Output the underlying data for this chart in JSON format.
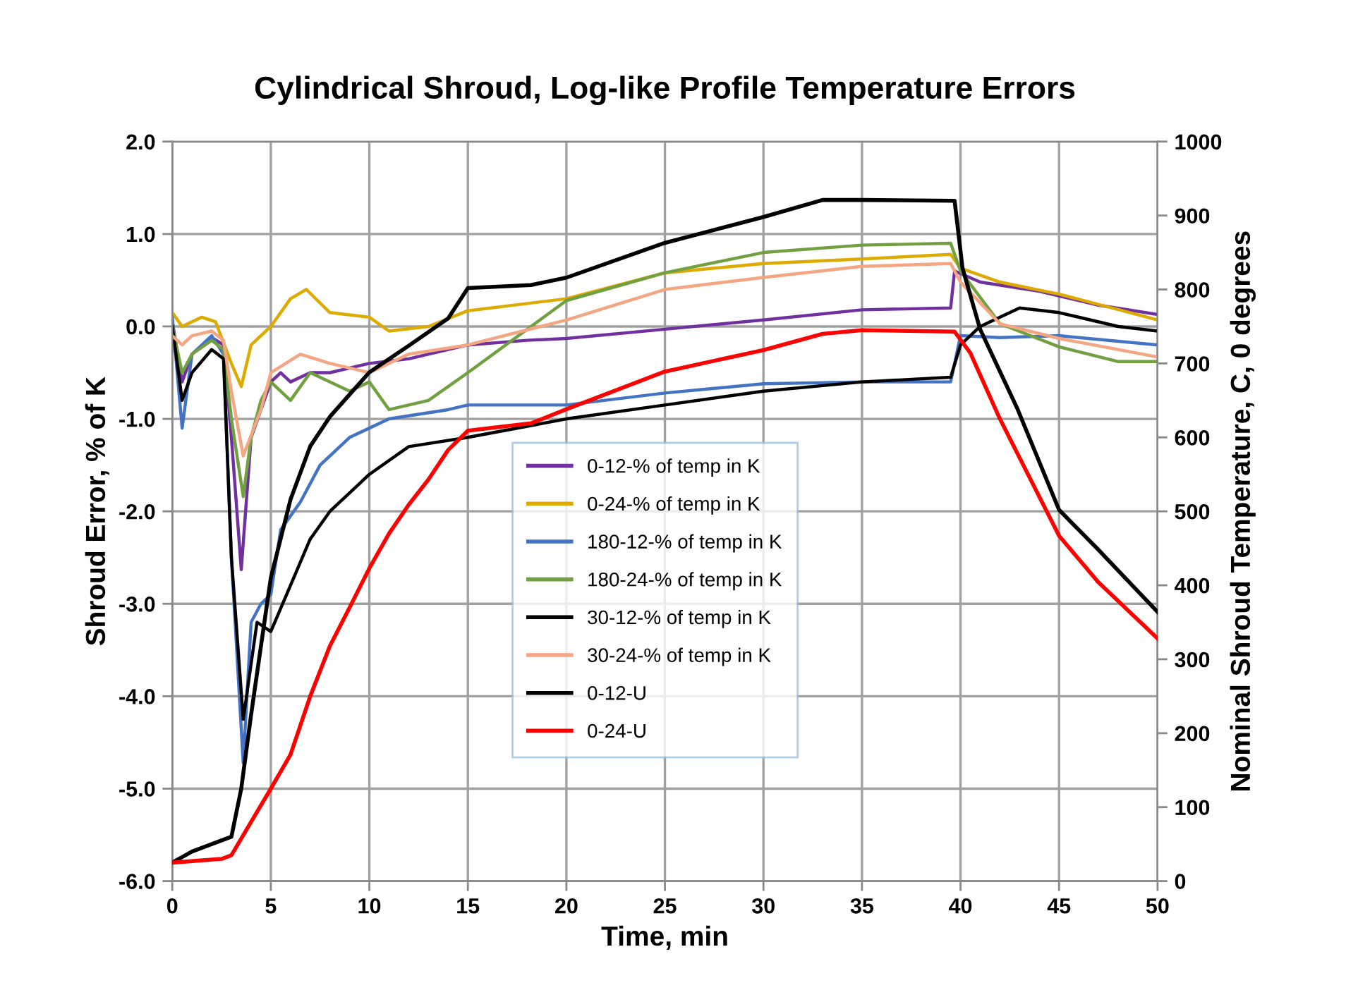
{
  "chart_data": {
    "type": "line",
    "title": "Cylindrical Shroud, Log-like Profile Temperature Errors",
    "xlabel": "Time, min",
    "ylabel": "Shroud Error, % of K",
    "y2label": "Nominal Shroud Temperature, C, 0 degrees",
    "xlim": [
      0,
      50
    ],
    "xticks": [
      0,
      5,
      10,
      15,
      20,
      25,
      30,
      35,
      40,
      45,
      50
    ],
    "ylim": [
      -6,
      2
    ],
    "yticks": [
      {
        "value": -6,
        "label": "-6.0"
      },
      {
        "value": -5,
        "label": "-5.0"
      },
      {
        "value": -4,
        "label": "-4.0"
      },
      {
        "value": -3,
        "label": "-3.0"
      },
      {
        "value": -2,
        "label": "-2.0"
      },
      {
        "value": -1,
        "label": "-1.0"
      },
      {
        "value": 0,
        "label": "0.0"
      },
      {
        "value": 1,
        "label": "1.0"
      },
      {
        "value": 2,
        "label": "2.0"
      }
    ],
    "y2lim": [
      0,
      1000
    ],
    "y2ticks": [
      0,
      100,
      200,
      300,
      400,
      500,
      600,
      700,
      800,
      900,
      1000
    ],
    "grid": true,
    "legend": "center",
    "marker": "none",
    "line_style": "solid",
    "series": [
      {
        "name": "0-12-% of temp in K",
        "color": "#7030a0",
        "x": [
          0,
          0.5,
          1,
          2,
          2.6,
          3,
          3.5,
          4,
          4.5,
          5,
          5.5,
          6,
          7,
          8,
          10,
          12,
          15,
          18,
          20,
          25,
          30,
          35,
          39.5,
          39.7,
          41,
          44,
          47,
          50
        ],
        "values": [
          0.06,
          -0.6,
          -0.3,
          -0.12,
          -0.2,
          -1.2,
          -2.63,
          -1.2,
          -0.9,
          -0.6,
          -0.5,
          -0.6,
          -0.5,
          -0.5,
          -0.4,
          -0.35,
          -0.2,
          -0.15,
          -0.13,
          -0.03,
          0.07,
          0.18,
          0.2,
          0.6,
          0.48,
          0.38,
          0.23,
          0.13
        ]
      },
      {
        "name": "0-24-% of temp in K",
        "color": "#dcaa00",
        "x": [
          0,
          0.5,
          1.5,
          2.2,
          3,
          3.5,
          4,
          5,
          6,
          6.8,
          8,
          10,
          11,
          13,
          15,
          20,
          25,
          30,
          35,
          39.5,
          40,
          42,
          45,
          50
        ],
        "values": [
          0.15,
          0.0,
          0.1,
          0.05,
          -0.4,
          -0.65,
          -0.2,
          0.0,
          0.3,
          0.4,
          0.15,
          0.1,
          -0.05,
          0.0,
          0.17,
          0.3,
          0.58,
          0.68,
          0.73,
          0.78,
          0.63,
          0.48,
          0.35,
          0.07
        ]
      },
      {
        "name": "180-12-% of temp in K",
        "color": "#4472c4",
        "x": [
          0,
          0.5,
          1,
          2,
          2.6,
          3,
          3.6,
          4,
          4.5,
          5,
          5.5,
          6.5,
          7.5,
          9,
          11,
          14,
          15,
          20,
          25,
          30,
          35,
          39.5,
          40,
          42,
          45,
          50
        ],
        "values": [
          0.1,
          -1.1,
          -0.3,
          -0.1,
          -0.3,
          -2.5,
          -4.72,
          -3.2,
          -3.0,
          -2.9,
          -2.2,
          -1.9,
          -1.5,
          -1.2,
          -1.0,
          -0.9,
          -0.85,
          -0.85,
          -0.72,
          -0.62,
          -0.6,
          -0.6,
          -0.1,
          -0.12,
          -0.1,
          -0.2
        ]
      },
      {
        "name": "180-24-% of temp in K",
        "color": "#70a040",
        "x": [
          0,
          0.5,
          1,
          2,
          2.6,
          3,
          3.6,
          4,
          4.5,
          5,
          6,
          7,
          9,
          10,
          11,
          13,
          15,
          20,
          25,
          30,
          35,
          39.5,
          40,
          42,
          45,
          48,
          50
        ],
        "values": [
          0.0,
          -0.5,
          -0.3,
          -0.15,
          -0.25,
          -1.0,
          -1.84,
          -1.2,
          -0.8,
          -0.6,
          -0.8,
          -0.5,
          -0.7,
          -0.6,
          -0.9,
          -0.8,
          -0.5,
          0.28,
          0.58,
          0.8,
          0.88,
          0.9,
          0.6,
          0.03,
          -0.22,
          -0.38,
          -0.38
        ]
      },
      {
        "name": "30-12-% of temp in K",
        "color": "#000000",
        "x": [
          0,
          0.5,
          1,
          2,
          2.6,
          3,
          3.6,
          4.3,
          5,
          6,
          7,
          8,
          10,
          12,
          15,
          20,
          25,
          30,
          35,
          39.5,
          40,
          41,
          43,
          45,
          48,
          50
        ],
        "values": [
          0.0,
          -0.8,
          -0.5,
          -0.25,
          -0.35,
          -2.5,
          -4.25,
          -3.2,
          -3.3,
          -2.8,
          -2.3,
          -2.0,
          -1.6,
          -1.3,
          -1.2,
          -1.0,
          -0.85,
          -0.7,
          -0.6,
          -0.55,
          -0.2,
          0.0,
          0.2,
          0.15,
          0.0,
          -0.05
        ]
      },
      {
        "name": "30-24-% of temp in K",
        "color": "#f4a582",
        "x": [
          0,
          0.5,
          1,
          2,
          2.6,
          3,
          3.6,
          4.5,
          5,
          6.5,
          8,
          10,
          12,
          15,
          20,
          25,
          30,
          35,
          39.5,
          40,
          42,
          45,
          50
        ],
        "values": [
          -0.1,
          -0.2,
          -0.1,
          -0.05,
          -0.15,
          -0.7,
          -1.4,
          -0.9,
          -0.5,
          -0.3,
          -0.4,
          -0.5,
          -0.3,
          -0.2,
          0.07,
          0.4,
          0.53,
          0.65,
          0.68,
          0.48,
          0.03,
          -0.13,
          -0.33
        ]
      },
      {
        "name": "0-12-U",
        "color": "#000000",
        "axis": "y2",
        "x": [
          0,
          1,
          2.5,
          3,
          3.5,
          4,
          4.5,
          5,
          6,
          7,
          8,
          10,
          12,
          14,
          15,
          18.2,
          20,
          25,
          30,
          33,
          35,
          39.7,
          40.1,
          41,
          42.9,
          45,
          47,
          50
        ],
        "values": [
          25,
          40,
          55,
          60,
          125,
          225,
          318,
          410,
          516,
          588,
          628,
          688,
          724,
          761,
          802,
          806,
          816,
          863,
          898,
          921,
          921,
          920,
          829,
          746,
          638,
          502,
          448,
          364
        ]
      },
      {
        "name": "0-24-U",
        "color": "#ff0000",
        "axis": "y2",
        "x": [
          0,
          2.5,
          3,
          4,
          5,
          6,
          7,
          8,
          9,
          10,
          11,
          12,
          13,
          14,
          15,
          18.2,
          20,
          25,
          30,
          33,
          35,
          39.7,
          40.5,
          42,
          45,
          47,
          50
        ],
        "values": [
          25,
          30,
          35,
          80,
          125,
          171,
          250,
          318,
          370,
          423,
          470,
          509,
          543,
          583,
          609,
          619,
          638,
          689,
          718,
          740,
          745,
          743,
          714,
          625,
          467,
          404,
          328
        ]
      }
    ]
  }
}
